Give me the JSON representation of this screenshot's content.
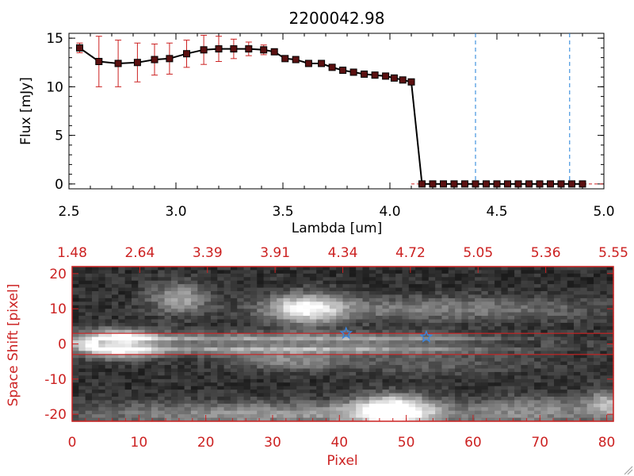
{
  "chart_data": [
    {
      "type": "line",
      "title": "2200042.98",
      "xlabel": "Lambda [um]",
      "ylabel": "Flux [mJy]",
      "xlim": [
        2.5,
        5.0
      ],
      "ylim": [
        -0.5,
        15.5
      ],
      "xticks": [
        "2.5",
        "3.0",
        "3.5",
        "4.0",
        "4.5",
        "5.0"
      ],
      "yticks": [
        "0",
        "5",
        "10",
        "15"
      ],
      "vlines_x": [
        4.4,
        4.84
      ],
      "hline_y": 0,
      "series": [
        {
          "name": "flux",
          "x": [
            2.55,
            2.64,
            2.73,
            2.82,
            2.9,
            2.97,
            3.05,
            3.13,
            3.2,
            3.27,
            3.34,
            3.41,
            3.46,
            3.51,
            3.56,
            3.62,
            3.68,
            3.73,
            3.78,
            3.83,
            3.88,
            3.93,
            3.98,
            4.02,
            4.06,
            4.1,
            4.15,
            4.2,
            4.25,
            4.3,
            4.35,
            4.4,
            4.45,
            4.5,
            4.55,
            4.6,
            4.65,
            4.7,
            4.75,
            4.8,
            4.85,
            4.9
          ],
          "y": [
            14.0,
            12.6,
            12.4,
            12.5,
            12.8,
            12.9,
            13.4,
            13.8,
            13.9,
            13.9,
            13.9,
            13.8,
            13.6,
            12.9,
            12.8,
            12.4,
            12.4,
            12.0,
            11.7,
            11.5,
            11.3,
            11.2,
            11.1,
            10.9,
            10.7,
            10.5,
            0,
            0,
            0,
            0,
            0,
            0,
            0,
            0,
            0,
            0,
            0,
            0,
            0,
            0,
            0,
            0
          ],
          "yerr": [
            0.5,
            2.6,
            2.4,
            2.0,
            1.6,
            1.6,
            1.4,
            1.5,
            1.3,
            1.0,
            0.7,
            0.5,
            0.3,
            0.2,
            0.2,
            0.2,
            0.2,
            0.2,
            0.2,
            0.2,
            0.2,
            0.2,
            0.2,
            0.2,
            0.2,
            0.2,
            0,
            0,
            0,
            0,
            0,
            0,
            0,
            0,
            0,
            0,
            0,
            0,
            0,
            0,
            0,
            0
          ]
        }
      ]
    },
    {
      "type": "heatmap",
      "xlabel": "Pixel",
      "ylabel": "Space Shift [pixel]",
      "xlim": [
        0,
        81
      ],
      "ylim": [
        -22,
        22
      ],
      "xticks": [
        "0",
        "10",
        "20",
        "30",
        "40",
        "50",
        "60",
        "70",
        "80"
      ],
      "yticks": [
        "-20",
        "-10",
        "0",
        "10",
        "20"
      ],
      "top_ticks": [
        "1.48",
        "2.64",
        "3.39",
        "3.91",
        "4.34",
        "4.72",
        "5.05",
        "5.36",
        "5.55"
      ],
      "aperture_y": [
        3,
        -3
      ],
      "stars": [
        {
          "x": 41,
          "y": 3
        },
        {
          "x": 53,
          "y": 2
        }
      ],
      "blobs": [
        {
          "x": 7,
          "y": 0,
          "sx": 4,
          "sy": 2.5,
          "a": 1.0
        },
        {
          "x": 24,
          "y": 0,
          "sx": 20,
          "sy": 2.0,
          "a": 0.55
        },
        {
          "x": 50,
          "y": 0,
          "sx": 14,
          "sy": 1.8,
          "a": 0.32
        },
        {
          "x": 35,
          "y": 10,
          "sx": 4,
          "sy": 3.0,
          "a": 0.7
        },
        {
          "x": 55,
          "y": 10,
          "sx": 18,
          "sy": 2.5,
          "a": 0.3
        },
        {
          "x": 16,
          "y": 13,
          "sx": 3,
          "sy": 3.0,
          "a": 0.45
        },
        {
          "x": 48,
          "y": -19,
          "sx": 4,
          "sy": 3.0,
          "a": 0.95
        },
        {
          "x": 30,
          "y": -20,
          "sx": 22,
          "sy": 2.5,
          "a": 0.4
        },
        {
          "x": 70,
          "y": -19,
          "sx": 8,
          "sy": 3.0,
          "a": 0.3
        },
        {
          "x": 80,
          "y": -17,
          "sx": 2,
          "sy": 3.0,
          "a": 0.45
        },
        {
          "x": 33,
          "y": -5,
          "sx": 6,
          "sy": 2.0,
          "a": 0.3
        },
        {
          "x": 55,
          "y": -6,
          "sx": 10,
          "sy": 2.0,
          "a": 0.18
        }
      ]
    }
  ]
}
